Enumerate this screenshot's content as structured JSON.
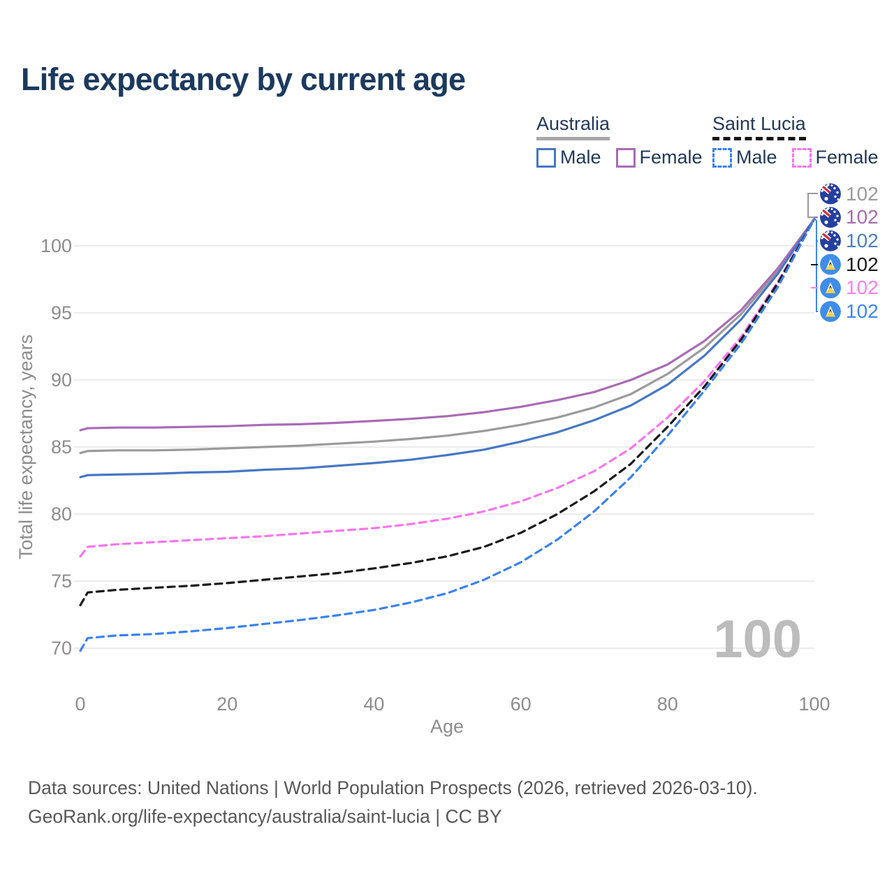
{
  "title": "Life expectancy by current age",
  "legend": {
    "groups": [
      {
        "name": "Australia",
        "line_style": "solid",
        "underline_color": "#a8a8a8",
        "items": [
          {
            "label": "Male",
            "color": "#4677c4"
          },
          {
            "label": "Female",
            "color": "#a96bb5"
          }
        ]
      },
      {
        "name": "Saint Lucia",
        "line_style": "dashed",
        "underline_color": "#141414",
        "items": [
          {
            "label": "Male",
            "color": "#3b82ee"
          },
          {
            "label": "Female",
            "color": "#fb74ef"
          }
        ]
      }
    ]
  },
  "chart_data": {
    "type": "line",
    "title": "Life expectancy by current age",
    "xlabel": "Age",
    "ylabel": "Total life expectancy, years",
    "xlim": [
      0,
      100
    ],
    "ylim": [
      69,
      103
    ],
    "xticks": [
      0,
      20,
      40,
      60,
      80,
      100
    ],
    "yticks": [
      70,
      75,
      80,
      85,
      90,
      95,
      100
    ],
    "grid": "horizontal-only",
    "legend_position": "top-right",
    "series": [
      {
        "id": "australia-all",
        "name": "Australia (all)",
        "country": "Australia",
        "color": "#9b9b9b",
        "dashed": false,
        "points": [
          [
            0,
            84.55
          ],
          [
            1,
            84.7
          ],
          [
            5,
            84.75
          ],
          [
            10,
            84.75
          ],
          [
            15,
            84.8
          ],
          [
            20,
            84.9
          ],
          [
            25,
            85.0
          ],
          [
            30,
            85.1
          ],
          [
            35,
            85.25
          ],
          [
            40,
            85.4
          ],
          [
            45,
            85.6
          ],
          [
            50,
            85.85
          ],
          [
            55,
            86.2
          ],
          [
            60,
            86.65
          ],
          [
            65,
            87.2
          ],
          [
            70,
            87.95
          ],
          [
            75,
            88.95
          ],
          [
            80,
            90.45
          ],
          [
            85,
            92.4
          ],
          [
            90,
            94.9
          ],
          [
            95,
            98.1
          ],
          [
            100,
            102
          ]
        ]
      },
      {
        "id": "australia-female",
        "name": "Australia Female",
        "country": "Australia",
        "color": "#a96bb5",
        "dashed": false,
        "points": [
          [
            0,
            86.25
          ],
          [
            1,
            86.4
          ],
          [
            5,
            86.45
          ],
          [
            10,
            86.45
          ],
          [
            15,
            86.5
          ],
          [
            20,
            86.55
          ],
          [
            25,
            86.65
          ],
          [
            30,
            86.7
          ],
          [
            35,
            86.8
          ],
          [
            40,
            86.95
          ],
          [
            45,
            87.1
          ],
          [
            50,
            87.3
          ],
          [
            55,
            87.6
          ],
          [
            60,
            88.0
          ],
          [
            65,
            88.5
          ],
          [
            70,
            89.1
          ],
          [
            75,
            90.0
          ],
          [
            80,
            91.15
          ],
          [
            85,
            92.9
          ],
          [
            90,
            95.2
          ],
          [
            95,
            98.3
          ],
          [
            100,
            102
          ]
        ]
      },
      {
        "id": "australia-male",
        "name": "Australia Male",
        "country": "Australia",
        "color": "#4677c4",
        "dashed": false,
        "points": [
          [
            0,
            82.75
          ],
          [
            1,
            82.9
          ],
          [
            5,
            82.95
          ],
          [
            10,
            83.0
          ],
          [
            15,
            83.1
          ],
          [
            20,
            83.15
          ],
          [
            25,
            83.3
          ],
          [
            30,
            83.4
          ],
          [
            35,
            83.6
          ],
          [
            40,
            83.8
          ],
          [
            45,
            84.05
          ],
          [
            50,
            84.4
          ],
          [
            55,
            84.8
          ],
          [
            60,
            85.4
          ],
          [
            65,
            86.1
          ],
          [
            70,
            87.0
          ],
          [
            75,
            88.1
          ],
          [
            80,
            89.65
          ],
          [
            85,
            91.8
          ],
          [
            90,
            94.5
          ],
          [
            95,
            97.9
          ],
          [
            100,
            102
          ]
        ]
      },
      {
        "id": "saintlucia-female",
        "name": "Saint Lucia Female",
        "country": "Saint Lucia",
        "color": "#fb74ef",
        "dashed": true,
        "points": [
          [
            0,
            76.85
          ],
          [
            1,
            77.55
          ],
          [
            5,
            77.75
          ],
          [
            10,
            77.9
          ],
          [
            15,
            78.05
          ],
          [
            20,
            78.2
          ],
          [
            25,
            78.35
          ],
          [
            30,
            78.55
          ],
          [
            35,
            78.75
          ],
          [
            40,
            78.95
          ],
          [
            45,
            79.25
          ],
          [
            50,
            79.65
          ],
          [
            55,
            80.2
          ],
          [
            60,
            80.95
          ],
          [
            65,
            81.95
          ],
          [
            70,
            83.2
          ],
          [
            75,
            84.9
          ],
          [
            80,
            87.2
          ],
          [
            85,
            89.9
          ],
          [
            90,
            93.2
          ],
          [
            95,
            97.3
          ],
          [
            100,
            102
          ]
        ]
      },
      {
        "id": "saintlucia-all",
        "name": "Saint Lucia (all)",
        "country": "Saint Lucia",
        "color": "#1a1a1a",
        "dashed": true,
        "points": [
          [
            0,
            73.2
          ],
          [
            1,
            74.15
          ],
          [
            5,
            74.35
          ],
          [
            10,
            74.5
          ],
          [
            15,
            74.65
          ],
          [
            20,
            74.85
          ],
          [
            25,
            75.1
          ],
          [
            30,
            75.35
          ],
          [
            35,
            75.6
          ],
          [
            40,
            75.95
          ],
          [
            45,
            76.35
          ],
          [
            50,
            76.85
          ],
          [
            55,
            77.55
          ],
          [
            60,
            78.6
          ],
          [
            65,
            80.0
          ],
          [
            70,
            81.7
          ],
          [
            75,
            83.75
          ],
          [
            80,
            86.5
          ],
          [
            85,
            89.5
          ],
          [
            90,
            93.0
          ],
          [
            95,
            97.2
          ],
          [
            100,
            102
          ]
        ]
      },
      {
        "id": "saintlucia-male",
        "name": "Saint Lucia Male",
        "country": "Saint Lucia",
        "color": "#3b82ee",
        "dashed": true,
        "points": [
          [
            0,
            69.8
          ],
          [
            1,
            70.75
          ],
          [
            5,
            70.95
          ],
          [
            10,
            71.05
          ],
          [
            15,
            71.25
          ],
          [
            20,
            71.5
          ],
          [
            25,
            71.8
          ],
          [
            30,
            72.1
          ],
          [
            35,
            72.45
          ],
          [
            40,
            72.85
          ],
          [
            45,
            73.4
          ],
          [
            50,
            74.1
          ],
          [
            55,
            75.1
          ],
          [
            60,
            76.4
          ],
          [
            65,
            78.1
          ],
          [
            70,
            80.2
          ],
          [
            75,
            82.75
          ],
          [
            80,
            85.85
          ],
          [
            85,
            89.2
          ],
          [
            90,
            92.7
          ],
          [
            95,
            96.9
          ],
          [
            100,
            102
          ]
        ]
      }
    ]
  },
  "end_labels": [
    {
      "flag": "australia",
      "value": "102",
      "color": "#9a9a9a"
    },
    {
      "flag": "australia",
      "value": "102",
      "color": "#a66bb0"
    },
    {
      "flag": "australia",
      "value": "102",
      "color": "#4d7ec4"
    },
    {
      "flag": "saintlucia",
      "value": "102",
      "color": "#1a1a1a"
    },
    {
      "flag": "saintlucia",
      "value": "102",
      "color": "#fb80f4"
    },
    {
      "flag": "saintlucia",
      "value": "102",
      "color": "#3c86f0"
    }
  ],
  "watermark": "100",
  "footer": {
    "line1": "Data sources: United Nations | World Population Prospects (2026, retrieved 2026-03-10).",
    "line2": "GeoRank.org/life-expectancy/australia/saint-lucia | CC BY"
  },
  "colors": {
    "title": "#1c3a5e",
    "tick_labels": "#8c8c8c",
    "gridline": "#ebebeb",
    "watermark": "#bcbcbc",
    "footer_text": "#575757"
  }
}
